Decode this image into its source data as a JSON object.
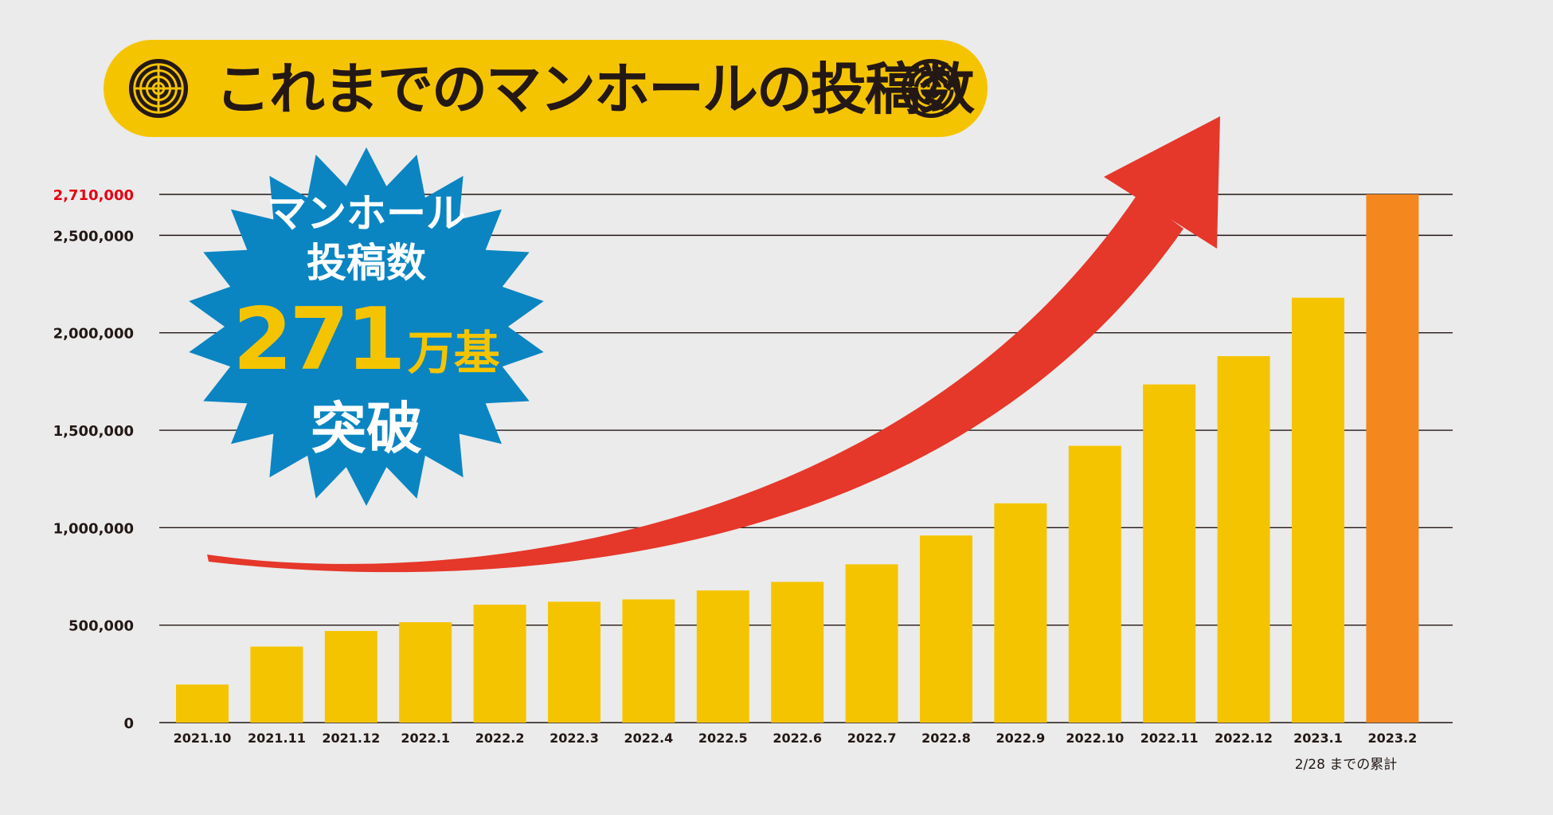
{
  "title": "これまでのマンホールの投稿数",
  "badge": {
    "line1": "マンホール",
    "line2": "投稿数",
    "number": "271",
    "unit": "万基",
    "line4": "突破"
  },
  "note": "2/28 までの累計",
  "colors": {
    "bar": "#f5c400",
    "highlight_bar": "#f5871f",
    "arrow": "#e5372a",
    "badge": "#0a85c2",
    "banner": "#f5c400",
    "highlight_label": "#e60012",
    "text": "#231815"
  },
  "icons": [
    "manhole-cover-icon",
    "manhole-cover-icon"
  ],
  "chart_data": {
    "type": "bar",
    "title": "これまでのマンホールの投稿数",
    "xlabel": "",
    "ylabel": "",
    "ylim": [
      0,
      2710000
    ],
    "grid": true,
    "categories": [
      "2021.10",
      "2021.11",
      "2021.12",
      "2022.1",
      "2022.2",
      "2022.3",
      "2022.4",
      "2022.5",
      "2022.6",
      "2022.7",
      "2022.8",
      "2022.9",
      "2022.10",
      "2022.11",
      "2022.12",
      "2023.1",
      "2023.2"
    ],
    "values": [
      195000,
      390000,
      470000,
      515000,
      605000,
      620000,
      632000,
      678000,
      722000,
      812000,
      960000,
      1125000,
      1420000,
      1735000,
      1880000,
      2180000,
      2710000
    ],
    "highlight_index": 16,
    "y_ticks": [
      {
        "value": 0,
        "label": "0"
      },
      {
        "value": 500000,
        "label": "500,000"
      },
      {
        "value": 1000000,
        "label": "1,000,000"
      },
      {
        "value": 1500000,
        "label": "1,500,000"
      },
      {
        "value": 2000000,
        "label": "2,000,000"
      },
      {
        "value": 2500000,
        "label": "2,500,000"
      },
      {
        "value": 2710000,
        "label": "2,710,000",
        "highlight": true
      }
    ]
  }
}
